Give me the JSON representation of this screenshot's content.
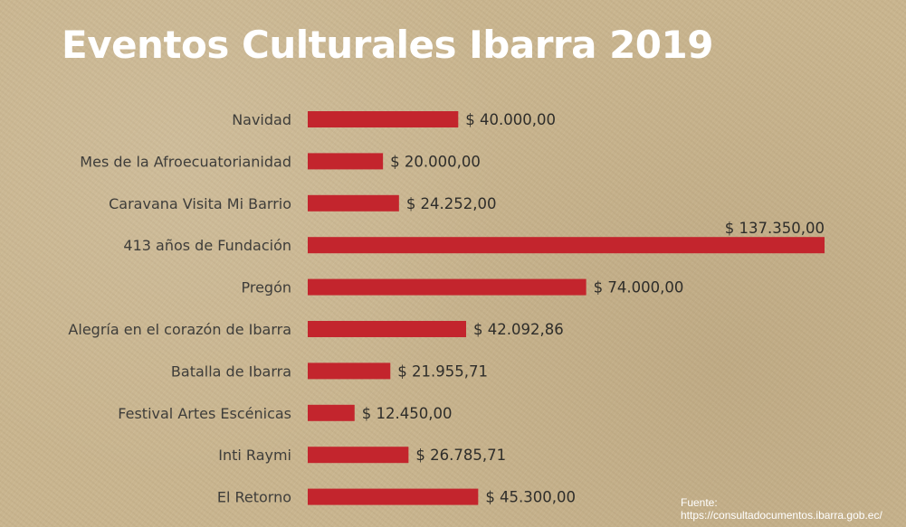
{
  "chart_data": {
    "type": "bar",
    "orientation": "horizontal",
    "title": "Eventos Culturales Ibarra 2019",
    "categories": [
      "Navidad",
      "Mes de la Afroecuatorianidad",
      "Caravana Visita Mi Barrio",
      "413 años de Fundación",
      "Pregón",
      "Alegría en el corazón de Ibarra",
      "Batalla de Ibarra",
      "Festival Artes Escénicas",
      "Inti Raymi",
      "El Retorno"
    ],
    "values": [
      40000,
      20000,
      24252,
      137350,
      74000,
      42092.86,
      21955.71,
      12450,
      26785.71,
      45300
    ],
    "value_labels": [
      "$ 40.000,00",
      "$ 20.000,00",
      "$ 24.252,00",
      "$ 137.350,00",
      "$ 74.000,00",
      "$ 42.092,86",
      "$ 21.955,71",
      "$ 12.450,00",
      "$ 26.785,71",
      "$ 45.300,00"
    ],
    "bar_color": "#c3252d",
    "grid": false,
    "legend": "none"
  },
  "source": {
    "label": "Fuente:",
    "url": "https://consultadocumentos.ibarra.gob.ec/"
  }
}
